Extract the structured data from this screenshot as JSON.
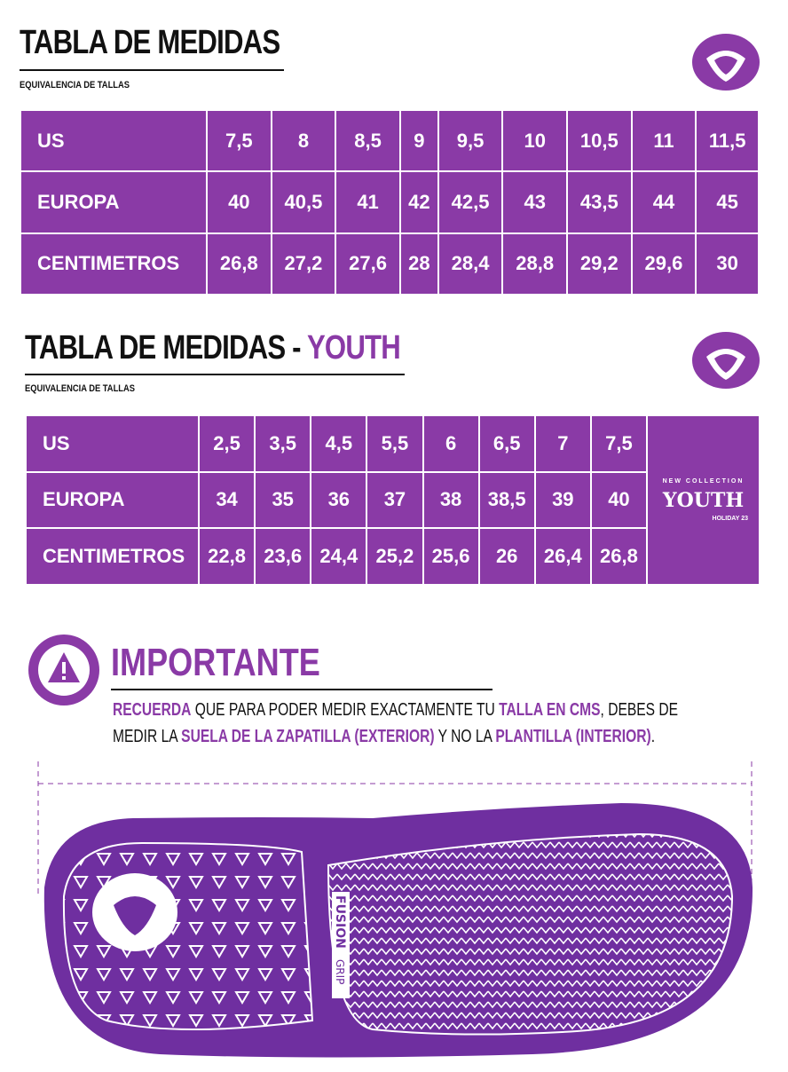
{
  "adult": {
    "title": "TABLA DE MEDIDAS",
    "subtitle": "EQUIVALENCIA DE TALLAS",
    "rows": [
      {
        "label": "US",
        "values": [
          "7,5",
          "8",
          "8,5",
          "9",
          "9,5",
          "10",
          "10,5",
          "11",
          "11,5"
        ]
      },
      {
        "label": "EUROPA",
        "values": [
          "40",
          "40,5",
          "41",
          "42",
          "42,5",
          "43",
          "43,5",
          "44",
          "45"
        ]
      },
      {
        "label": "CENTIMETROS",
        "values": [
          "26,8",
          "27,2",
          "27,6",
          "28",
          "28,4",
          "28,8",
          "29,2",
          "29,6",
          "30"
        ]
      }
    ]
  },
  "youth": {
    "title": "TABLA DE MEDIDAS -",
    "title_accent": "YOUTH",
    "subtitle": "EQUIVALENCIA DE TALLAS",
    "rows": [
      {
        "label": "US",
        "values": [
          "2,5",
          "3,5",
          "4,5",
          "5,5",
          "6",
          "6,5",
          "7",
          "7,5"
        ]
      },
      {
        "label": "EUROPA",
        "values": [
          "34",
          "35",
          "36",
          "37",
          "38",
          "38,5",
          "39",
          "40"
        ]
      },
      {
        "label": "CENTIMETROS",
        "values": [
          "22,8",
          "23,6",
          "24,4",
          "25,2",
          "25,6",
          "26",
          "26,4",
          "26,8"
        ]
      }
    ],
    "badge": {
      "top": "NEW COLLECTION",
      "main": "YOUTH",
      "bottom": "HOLIDAY 23"
    }
  },
  "important": {
    "title": "IMPORTANTE",
    "line1": [
      {
        "t": "RECUERDA",
        "hl": true
      },
      {
        "t": " QUE PARA PODER MEDIR EXACTAMENTE TU ",
        "hl": false
      },
      {
        "t": "TALLA EN CMS",
        "hl": true
      },
      {
        "t": ", DEBES DE",
        "hl": false
      }
    ],
    "line2": [
      {
        "t": "MEDIR LA ",
        "hl": false
      },
      {
        "t": "SUELA DE LA ZAPATILLA (EXTERIOR)",
        "hl": true
      },
      {
        "t": " Y NO LA ",
        "hl": false
      },
      {
        "t": "PLANTILLA (INTERIOR)",
        "hl": true
      },
      {
        "t": ".",
        "hl": false
      }
    ]
  },
  "sole": {
    "brand_a": "FUSION",
    "brand_b": "GRIP"
  },
  "colors": {
    "accent": "#8a3aa6"
  }
}
